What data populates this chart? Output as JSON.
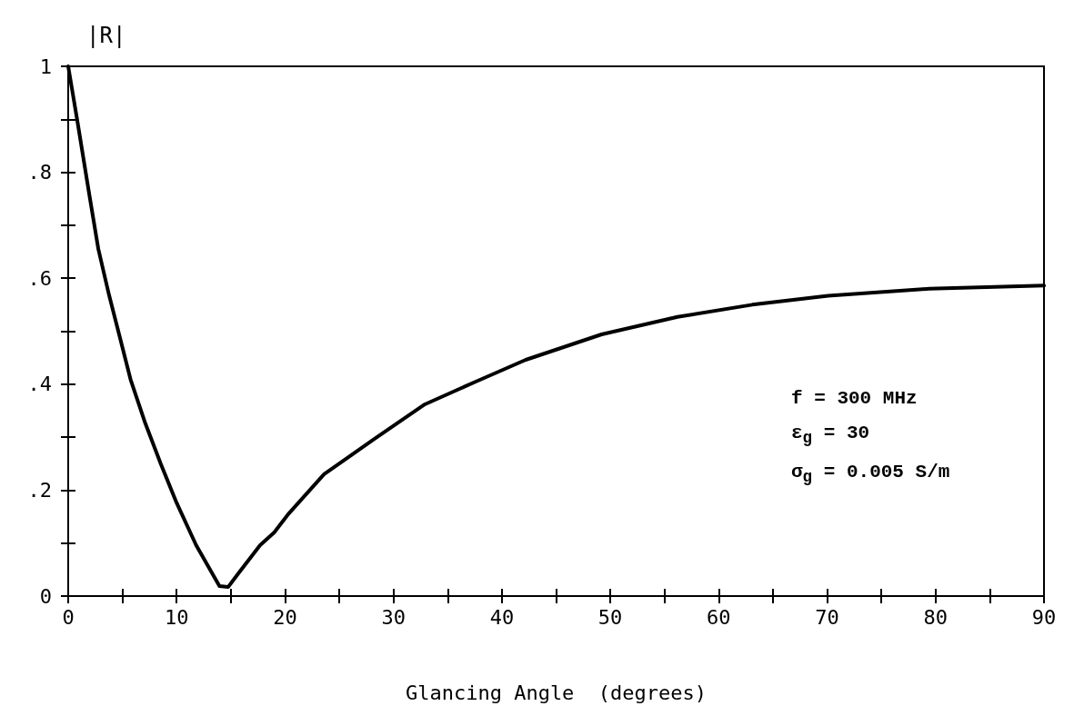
{
  "chart_data": {
    "type": "line",
    "xlabel": "Glancing Angle  (degrees)",
    "ylabel": "|R|",
    "x": [
      0,
      0.82,
      1.97,
      2.78,
      3.77,
      4.76,
      5.75,
      7.06,
      8.53,
      10.0,
      11.8,
      13.95,
      14.75,
      15.7,
      17.7,
      19.0,
      20.35,
      23.6,
      28.2,
      32.9,
      37.5,
      42.2,
      49.2,
      56.2,
      63.1,
      70.1,
      79.4,
      90
    ],
    "series": [
      {
        "color": "#000000",
        "values": [
          1.0,
          0.9,
          0.755,
          0.655,
          0.568,
          0.489,
          0.409,
          0.329,
          0.25,
          0.176,
          0.096,
          0.019,
          0.017,
          0.043,
          0.096,
          0.12,
          0.156,
          0.23,
          0.296,
          0.362,
          0.404,
          0.446,
          0.494,
          0.527,
          0.55,
          0.567,
          0.58,
          0.586
        ]
      }
    ],
    "xlim": [
      0,
      90
    ],
    "xticks": [
      0,
      {
        "value": 5,
        "label": null
      },
      10,
      {
        "value": 15,
        "label": null
      },
      20,
      {
        "value": 25,
        "label": null
      },
      30,
      {
        "value": 35,
        "label": null
      },
      40,
      {
        "value": 45,
        "label": null
      },
      50,
      {
        "value": 55,
        "label": null
      },
      60,
      {
        "value": 65,
        "label": null
      },
      70,
      {
        "value": 75,
        "label": null
      },
      80,
      {
        "value": 85,
        "label": null
      },
      90
    ],
    "ylim": [
      0,
      1
    ],
    "yticks": [
      0,
      {
        "value": 0.1,
        "label": null
      },
      {
        "value": 0.2,
        "label": ".2"
      },
      {
        "value": 0.3,
        "label": null
      },
      {
        "value": 0.4,
        "label": ".4"
      },
      {
        "value": 0.5,
        "label": null
      },
      {
        "value": 0.6,
        "label": ".6"
      },
      {
        "value": 0.7,
        "label": null
      },
      {
        "value": 0.8,
        "label": ".8"
      },
      {
        "value": 0.9,
        "label": null
      },
      1
    ],
    "annotations": [
      "f  = 300 MHz",
      "ε$_{g}$ = 30",
      "σ$_{g}$ = 0.005 S/m"
    ],
    "grid": false,
    "marker": "none",
    "line_style": "solid"
  }
}
